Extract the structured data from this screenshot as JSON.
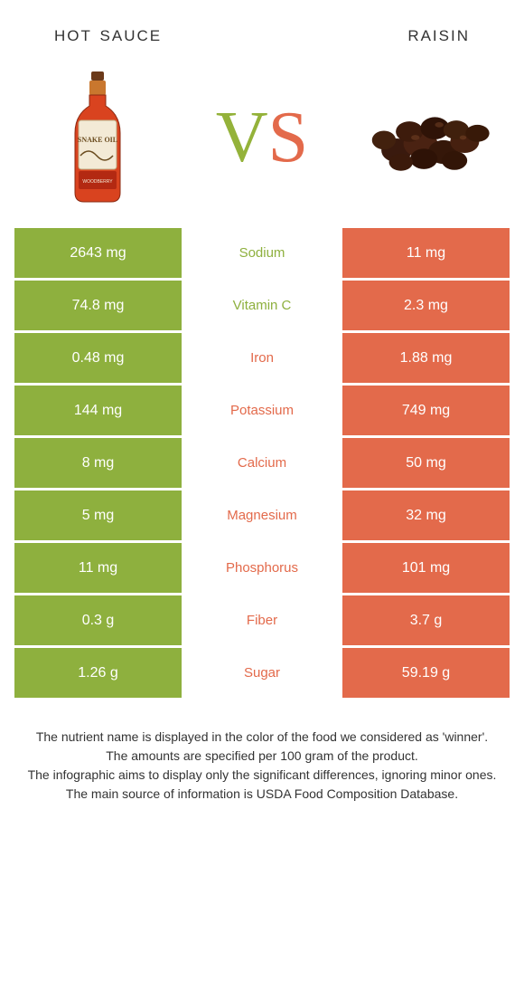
{
  "header": {
    "left": "hot sauce",
    "right": "raisin"
  },
  "vs": {
    "v": "V",
    "s": "S"
  },
  "colors": {
    "left": "#8eb03e",
    "right": "#e36a4b",
    "bg": "#ffffff"
  },
  "rows": [
    {
      "nutrient": "Sodium",
      "left": "2643 mg",
      "right": "11 mg",
      "winner": "left"
    },
    {
      "nutrient": "Vitamin C",
      "left": "74.8 mg",
      "right": "2.3 mg",
      "winner": "left"
    },
    {
      "nutrient": "Iron",
      "left": "0.48 mg",
      "right": "1.88 mg",
      "winner": "right"
    },
    {
      "nutrient": "Potassium",
      "left": "144 mg",
      "right": "749 mg",
      "winner": "right"
    },
    {
      "nutrient": "Calcium",
      "left": "8 mg",
      "right": "50 mg",
      "winner": "right"
    },
    {
      "nutrient": "Magnesium",
      "left": "5 mg",
      "right": "32 mg",
      "winner": "right"
    },
    {
      "nutrient": "Phosphorus",
      "left": "11 mg",
      "right": "101 mg",
      "winner": "right"
    },
    {
      "nutrient": "Fiber",
      "left": "0.3 g",
      "right": "3.7 g",
      "winner": "right"
    },
    {
      "nutrient": "Sugar",
      "left": "1.26 g",
      "right": "59.19 g",
      "winner": "right"
    }
  ],
  "footer": {
    "l1": "The nutrient name is displayed in the color of the food we considered as 'winner'.",
    "l2": "The amounts are specified per 100 gram of the product.",
    "l3": "The infographic aims to display only the significant differences, ignoring minor ones.",
    "l4": "The main source of information is USDA Food Composition Database."
  }
}
